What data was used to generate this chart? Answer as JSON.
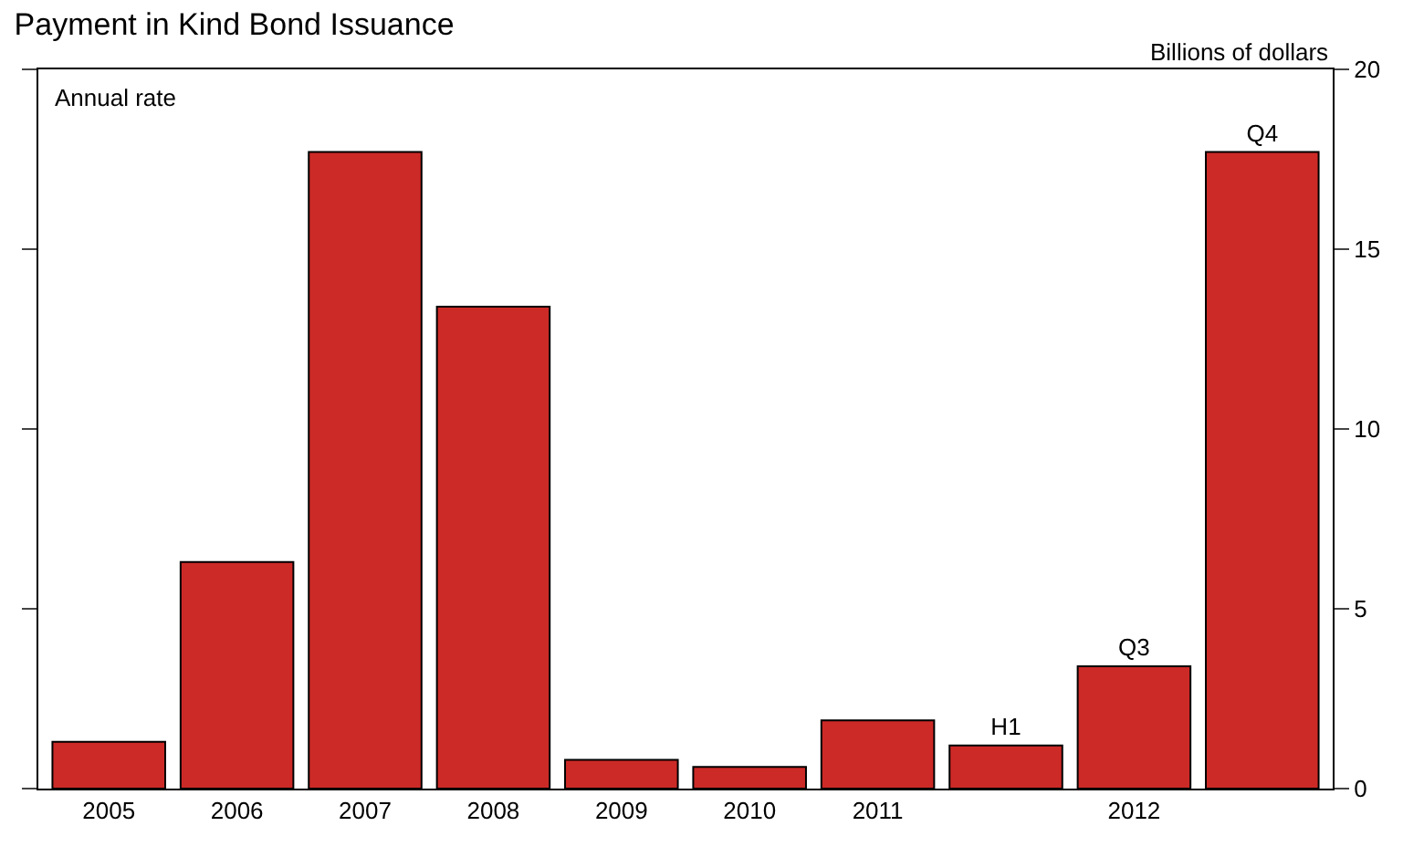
{
  "chart_data": {
    "type": "bar",
    "title": "Payment in Kind Bond Issuance",
    "ylabel": "Billions of dollars",
    "annotations": [
      "Annual rate"
    ],
    "categories": [
      "2005",
      "2006",
      "2007",
      "2008",
      "2009",
      "2010",
      "2011",
      null,
      "2012",
      null
    ],
    "values": [
      1.3,
      6.3,
      17.7,
      13.4,
      0.8,
      0.6,
      1.9,
      1.2,
      3.4,
      17.7
    ],
    "value_labels": [
      null,
      null,
      null,
      null,
      null,
      null,
      null,
      "H1",
      "Q3",
      "Q4"
    ],
    "color": "#cc2a27",
    "ylim": [
      0,
      20
    ],
    "yticks": [
      0,
      5,
      10,
      15,
      20
    ]
  }
}
